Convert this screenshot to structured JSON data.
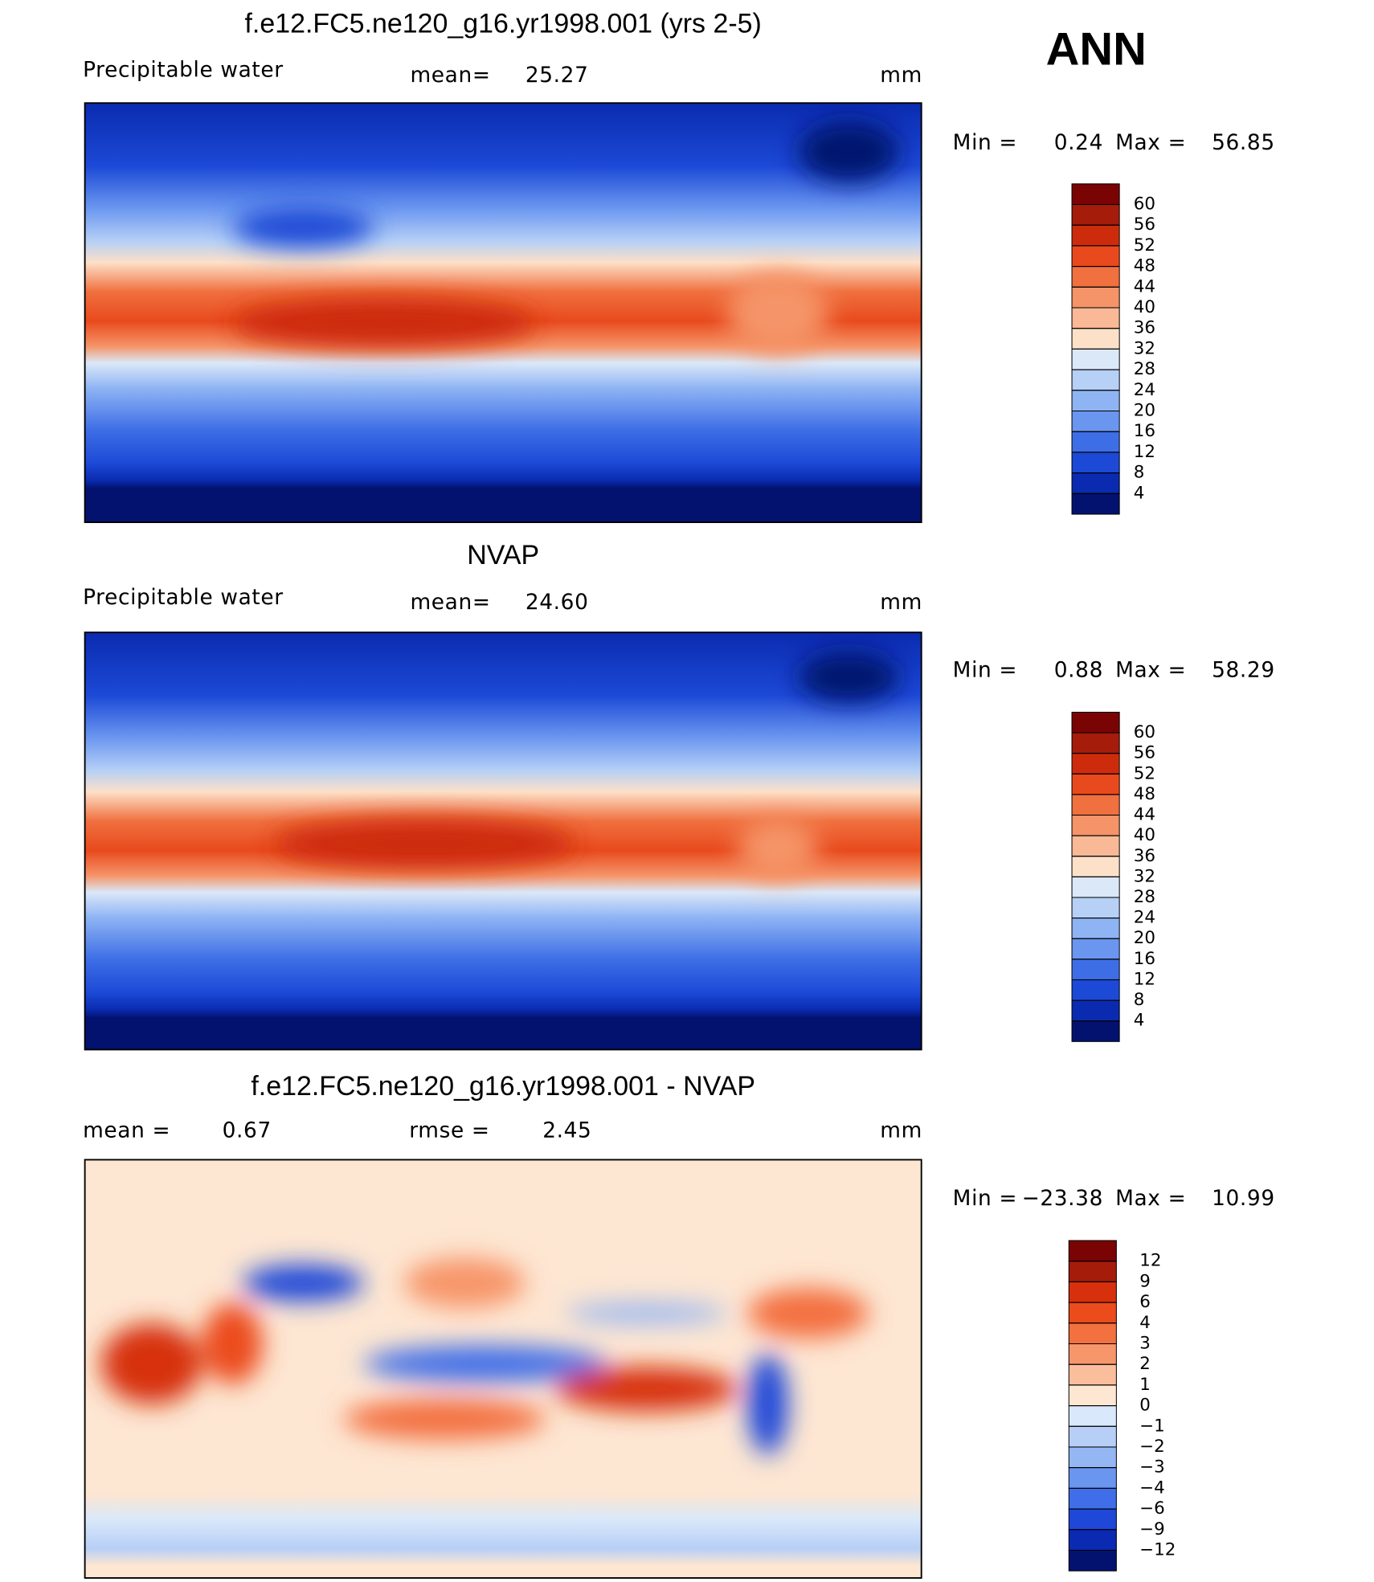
{
  "season": "ANN",
  "panels": [
    {
      "title": "f.e12.FC5.ne120_g16.yr1998.001 (yrs 2-5)",
      "variable": "Precipitable water",
      "mean_label": "mean=",
      "mean": "25.27",
      "units": "mm",
      "min_label": "Min =",
      "min": "0.24",
      "max_label": "Max =",
      "max": "56.85",
      "colorbar": {
        "levels": [
          60,
          56,
          52,
          48,
          44,
          40,
          36,
          32,
          28,
          24,
          20,
          16,
          12,
          8,
          4
        ],
        "colors": [
          "#7a0403",
          "#a51c0b",
          "#cd2c0c",
          "#e84a1d",
          "#f0703f",
          "#f59468",
          "#f9b896",
          "#fde0c8",
          "#dbe8f8",
          "#b6d0f6",
          "#8fb4f4",
          "#6a96f0",
          "#3e6ee6",
          "#1c49d6",
          "#0a2bb0",
          "#02126e"
        ]
      }
    },
    {
      "title": "NVAP",
      "variable": "Precipitable water",
      "mean_label": "mean=",
      "mean": "24.60",
      "units": "mm",
      "min_label": "Min =",
      "min": "0.88",
      "max_label": "Max =",
      "max": "58.29",
      "colorbar": {
        "levels": [
          60,
          56,
          52,
          48,
          44,
          40,
          36,
          32,
          28,
          24,
          20,
          16,
          12,
          8,
          4
        ],
        "colors": [
          "#7a0403",
          "#a51c0b",
          "#cd2c0c",
          "#e84a1d",
          "#f0703f",
          "#f59468",
          "#f9b896",
          "#fde0c8",
          "#dbe8f8",
          "#b6d0f6",
          "#8fb4f4",
          "#6a96f0",
          "#3e6ee6",
          "#1c49d6",
          "#0a2bb0",
          "#02126e"
        ]
      }
    },
    {
      "title": "f.e12.FC5.ne120_g16.yr1998.001 - NVAP",
      "mean_label": "mean =",
      "mean": "0.67",
      "rmse_label": "rmse =",
      "rmse": "2.45",
      "units": "mm",
      "min_label": "Min =",
      "min": "−23.38",
      "max_label": "Max =",
      "max": "10.99",
      "colorbar": {
        "levels": [
          12,
          9,
          6,
          4,
          3,
          2,
          1,
          0,
          {
            "value": -1,
            "label": "−1"
          },
          {
            "value": -2,
            "label": "−2"
          },
          {
            "value": -3,
            "label": "−3"
          },
          {
            "value": -4,
            "label": "−4"
          },
          {
            "value": -6,
            "label": "−6"
          },
          {
            "value": -9,
            "label": "−9"
          },
          {
            "value": -12,
            "label": "−12"
          }
        ],
        "colors": [
          "#7a0403",
          "#a51c0b",
          "#d7300d",
          "#ec4b1c",
          "#f3703f",
          "#f7966b",
          "#fbbe9d",
          "#fde6d2",
          "#d9e8fa",
          "#b7cff6",
          "#94b6f3",
          "#6a96f0",
          "#3f6ee8",
          "#1f47d8",
          "#0a2ab2",
          "#02126e"
        ]
      }
    }
  ]
}
